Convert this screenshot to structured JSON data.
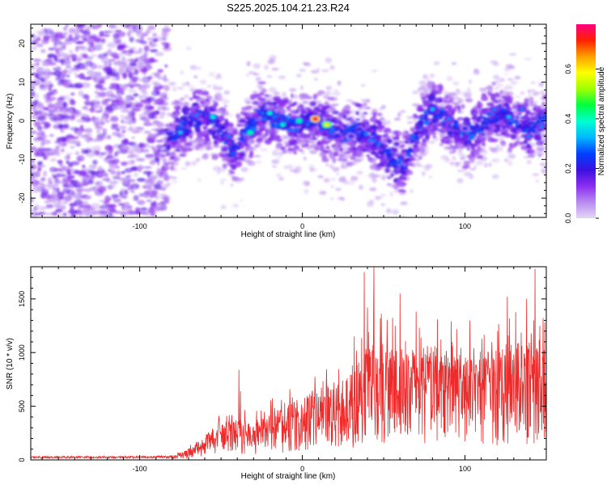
{
  "title": "S225.2025.104.21.23.R24",
  "chart_data": [
    {
      "type": "heatmap",
      "title": "",
      "xlabel": "Height of straight line (km)",
      "ylabel": "Frequency (Hz)",
      "xlim": [
        -167,
        150
      ],
      "ylim": [
        -25,
        25
      ],
      "x_ticks": [
        -100,
        0,
        100
      ],
      "y_ticks": [
        -20,
        -10,
        0,
        10,
        20
      ],
      "colorbar": {
        "label": "Normalized spectral amplitude",
        "range": [
          0.0,
          0.78
        ],
        "ticks": [
          0.0,
          0.2,
          0.4,
          0.6
        ],
        "colors": [
          "#e4d6f7",
          "#b88af0",
          "#8b2cf0",
          "#3a10e0",
          "#0040ff",
          "#00b8ff",
          "#00ffd0",
          "#00ff40",
          "#a0ff00",
          "#ffff00",
          "#ffa000",
          "#ff2000",
          "#ff0080"
        ]
      },
      "ridge_center": [
        {
          "x": -82,
          "y": -5
        },
        {
          "x": -70,
          "y": 0
        },
        {
          "x": -60,
          "y": 1
        },
        {
          "x": -50,
          "y": -2
        },
        {
          "x": -42,
          "y": -8
        },
        {
          "x": -35,
          "y": -3
        },
        {
          "x": -25,
          "y": 2
        },
        {
          "x": -15,
          "y": 0
        },
        {
          "x": -5,
          "y": -1
        },
        {
          "x": 5,
          "y": 0
        },
        {
          "x": 15,
          "y": -2
        },
        {
          "x": 25,
          "y": -4
        },
        {
          "x": 35,
          "y": -2
        },
        {
          "x": 45,
          "y": -5
        },
        {
          "x": 55,
          "y": -10
        },
        {
          "x": 62,
          "y": -12
        },
        {
          "x": 70,
          "y": -3
        },
        {
          "x": 80,
          "y": 3
        },
        {
          "x": 90,
          "y": 0
        },
        {
          "x": 100,
          "y": -4
        },
        {
          "x": 110,
          "y": -1
        },
        {
          "x": 120,
          "y": 2
        },
        {
          "x": 130,
          "y": 0
        },
        {
          "x": 140,
          "y": -2
        },
        {
          "x": 150,
          "y": 0
        }
      ],
      "hotspots": [
        {
          "x": 8,
          "y": 0.5,
          "value": 0.78
        },
        {
          "x": 15,
          "y": -1,
          "value": 0.6
        },
        {
          "x": -2,
          "y": 0,
          "value": 0.45
        },
        {
          "x": -32,
          "y": -3,
          "value": 0.45
        },
        {
          "x": -55,
          "y": 1,
          "value": 0.4
        },
        {
          "x": -75,
          "y": -3,
          "value": 0.35
        },
        {
          "x": -65,
          "y": 1.5,
          "value": 0.3
        },
        {
          "x": -20,
          "y": 2,
          "value": 0.4
        },
        {
          "x": -12,
          "y": -1,
          "value": 0.4
        },
        {
          "x": 80,
          "y": 3,
          "value": 0.35
        },
        {
          "x": 118,
          "y": 3,
          "value": 0.3
        },
        {
          "x": 127,
          "y": 1,
          "value": 0.35
        },
        {
          "x": 135,
          "y": 3,
          "value": 0.3
        },
        {
          "x": 139,
          "y": -4,
          "value": 0.3
        },
        {
          "x": 147,
          "y": -1.5,
          "value": 0.3
        },
        {
          "x": 90,
          "y": 0.5,
          "value": 0.3
        },
        {
          "x": 100,
          "y": -2,
          "value": 0.25
        },
        {
          "x": -45,
          "y": -4,
          "value": 0.3
        },
        {
          "x": 30,
          "y": -4,
          "value": 0.25
        },
        {
          "x": 58,
          "y": -6,
          "value": 0.2
        }
      ]
    },
    {
      "type": "line",
      "title": "",
      "xlabel": "Height of straight line (km)",
      "ylabel": "SNR (10 * v/v)",
      "xlim": [
        -167,
        150
      ],
      "ylim": [
        0,
        1800
      ],
      "x_ticks": [
        -100,
        0,
        100
      ],
      "y_ticks": [
        0,
        500,
        1000,
        1500
      ],
      "series_color": "#ee2a2a",
      "series": [
        {
          "name": "",
          "envelope": [
            {
              "x": -167,
              "y": 25
            },
            {
              "x": -140,
              "y": 25
            },
            {
              "x": -100,
              "y": 25
            },
            {
              "x": -80,
              "y": 30
            },
            {
              "x": -75,
              "y": 60
            },
            {
              "x": -70,
              "y": 90
            },
            {
              "x": -65,
              "y": 150
            },
            {
              "x": -60,
              "y": 200
            },
            {
              "x": -55,
              "y": 260
            },
            {
              "x": -50,
              "y": 300
            },
            {
              "x": -44,
              "y": 380
            },
            {
              "x": -39,
              "y": 350
            },
            {
              "x": -35,
              "y": 320
            },
            {
              "x": -30,
              "y": 300
            },
            {
              "x": -25,
              "y": 330
            },
            {
              "x": -20,
              "y": 380
            },
            {
              "x": -15,
              "y": 420
            },
            {
              "x": -10,
              "y": 450
            },
            {
              "x": -5,
              "y": 480
            },
            {
              "x": 0,
              "y": 500
            },
            {
              "x": 5,
              "y": 560
            },
            {
              "x": 10,
              "y": 580
            },
            {
              "x": 15,
              "y": 600
            },
            {
              "x": 20,
              "y": 620
            },
            {
              "x": 25,
              "y": 650
            },
            {
              "x": 30,
              "y": 700
            },
            {
              "x": 35,
              "y": 820
            },
            {
              "x": 40,
              "y": 900
            },
            {
              "x": 45,
              "y": 950
            },
            {
              "x": 50,
              "y": 950
            },
            {
              "x": 60,
              "y": 900
            },
            {
              "x": 70,
              "y": 900
            },
            {
              "x": 80,
              "y": 950
            },
            {
              "x": 90,
              "y": 900
            },
            {
              "x": 100,
              "y": 850
            },
            {
              "x": 110,
              "y": 880
            },
            {
              "x": 120,
              "y": 900
            },
            {
              "x": 130,
              "y": 950
            },
            {
              "x": 140,
              "y": 950
            },
            {
              "x": 150,
              "y": 900
            }
          ],
          "peaks": [
            {
              "x": -39,
              "y": 840
            },
            {
              "x": -38,
              "y": 640
            },
            {
              "x": 32,
              "y": 1150
            },
            {
              "x": 38,
              "y": 1750
            },
            {
              "x": 40,
              "y": 1420
            },
            {
              "x": 44,
              "y": 1800
            },
            {
              "x": 48,
              "y": 1320
            },
            {
              "x": 57,
              "y": 1250
            },
            {
              "x": 60,
              "y": 1550
            },
            {
              "x": 70,
              "y": 1380
            },
            {
              "x": 72,
              "y": 1230
            },
            {
              "x": 83,
              "y": 1310
            },
            {
              "x": 92,
              "y": 1100
            },
            {
              "x": 103,
              "y": 1300
            },
            {
              "x": 120,
              "y": 1200
            },
            {
              "x": 126,
              "y": 1520
            },
            {
              "x": 138,
              "y": 1500
            },
            {
              "x": 143,
              "y": 1780
            },
            {
              "x": 146,
              "y": 1250
            },
            {
              "x": 149,
              "y": 1280
            }
          ]
        }
      ]
    }
  ]
}
